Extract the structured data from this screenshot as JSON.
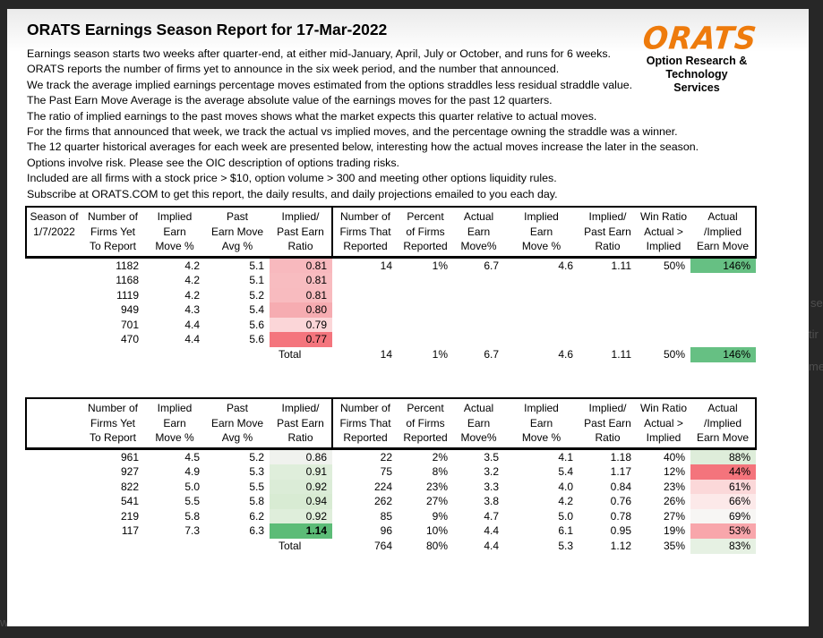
{
  "page": {
    "title": "ORATS Earnings Season Report for 17-Mar-2022",
    "intro_lines": [
      "Earnings season starts two weeks after quarter-end, at either mid-January, April, July or October, and runs for 6 weeks.",
      "ORATS reports the number of firms yet to announce in the six week period, and the number that announced.",
      "We track the average implied earnings percentage moves estimated from the options straddles less residual straddle value.",
      "The Past Earn Move Average is the average absolute value of the earnings moves for the past 12 quarters.",
      "The ratio of implied earnings to the past moves shows what the market expects this quarter relative to actual moves.",
      "For the firms that announced that week, we track the actual vs implied moves, and the percentage owning the straddle was a winner.",
      "The 12 quarter historical averages for each week are presented below, interesting how the actual moves increase the later in the season.",
      "Options involve risk. Please see the OIC description of options trading risks.",
      "Included are all firms with a stock price > $10, option volume > 300 and meeting other options liquidity rules.",
      "Subscribe at ORATS.COM to get this report, the daily results, and daily projections emailed to you each day."
    ]
  },
  "logo": {
    "brand": "ORATS",
    "brand_color": "#EE7B0C",
    "tagline_line1": "Option Research &",
    "tagline_line2": "Technology Services"
  },
  "background": {
    "fragments": [
      {
        "text": "se"
      },
      {
        "text": "tir"
      },
      {
        "text": "me"
      },
      {
        "text": "w"
      }
    ]
  },
  "tables": [
    {
      "name": "current-season",
      "headers": [
        [
          "Season of",
          "1/7/2022",
          ""
        ],
        [
          "Number of",
          "Firms Yet",
          "To Report"
        ],
        [
          "Implied",
          "Earn",
          "Move %"
        ],
        [
          "Past",
          "Earn Move",
          "Avg %"
        ],
        [
          "Implied/",
          "Past Earn",
          "Ratio"
        ],
        [
          "Number of",
          "Firms That",
          "Reported"
        ],
        [
          "Percent",
          "of Firms",
          "Reported"
        ],
        [
          "Actual",
          "Earn",
          "Move%"
        ],
        [
          "Implied",
          "Earn",
          "Move %"
        ],
        [
          "Implied/",
          "Past Earn",
          "Ratio"
        ],
        [
          "Win Ratio",
          "Actual >",
          "Implied"
        ],
        [
          "Actual",
          "/Implied",
          "Earn Move"
        ]
      ],
      "rows": [
        [
          "",
          "1182",
          "4.2",
          "5.1",
          {
            "t": "0.81",
            "bg": "#F8B9BE"
          },
          "14",
          "1%",
          "6.7",
          "4.6",
          "1.11",
          "50%",
          {
            "t": "146%",
            "bg": "#66C083"
          }
        ],
        [
          "",
          "1168",
          "4.2",
          "5.1",
          {
            "t": "0.81",
            "bg": "#F8BCC0"
          },
          "",
          "",
          "",
          "",
          "",
          "",
          ""
        ],
        [
          "",
          "1119",
          "4.2",
          "5.2",
          {
            "t": "0.81",
            "bg": "#F8BBBF"
          },
          "",
          "",
          "",
          "",
          "",
          "",
          ""
        ],
        [
          "",
          "949",
          "4.3",
          "5.4",
          {
            "t": "0.80",
            "bg": "#F6ACB1"
          },
          "",
          "",
          "",
          "",
          "",
          "",
          ""
        ],
        [
          "",
          "701",
          "4.4",
          "5.6",
          {
            "t": "0.79",
            "bg": "#FBD6D8"
          },
          "",
          "",
          "",
          "",
          "",
          "",
          ""
        ],
        [
          "",
          "470",
          "4.4",
          "5.6",
          {
            "t": "0.77",
            "bg": "#F4757D"
          },
          "",
          "",
          "",
          "",
          "",
          "",
          ""
        ],
        [
          "",
          "",
          "",
          "",
          {
            "t": "Total",
            "align": "left"
          },
          "14",
          "1%",
          "6.7",
          "4.6",
          "1.11",
          "50%",
          {
            "t": "146%",
            "bg": "#66C083"
          }
        ]
      ]
    },
    {
      "name": "historical-averages",
      "headers": [
        [
          "",
          "",
          ""
        ],
        [
          "Number of",
          "Firms Yet",
          "To Report"
        ],
        [
          "Implied",
          "Earn",
          "Move %"
        ],
        [
          "Past",
          "Earn Move",
          "Avg %"
        ],
        [
          "Implied/",
          "Past Earn",
          "Ratio"
        ],
        [
          "Number of",
          "Firms That",
          "Reported"
        ],
        [
          "Percent",
          "of Firms",
          "Reported"
        ],
        [
          "Actual",
          "Earn",
          "Move%"
        ],
        [
          "Implied",
          "Earn",
          "Move %"
        ],
        [
          "Implied/",
          "Past Earn",
          "Ratio"
        ],
        [
          "Win Ratio",
          "Actual >",
          "Implied"
        ],
        [
          "Actual",
          "/Implied",
          "Earn Move"
        ]
      ],
      "rows": [
        [
          "",
          "961",
          "4.5",
          "5.2",
          {
            "t": "0.86",
            "bg": "#F0F2EE"
          },
          "22",
          "2%",
          "3.5",
          "4.1",
          "1.18",
          "40%",
          {
            "t": "88%",
            "bg": "#DEEDDA"
          }
        ],
        [
          "",
          "927",
          "4.9",
          "5.3",
          {
            "t": "0.91",
            "bg": "#DFEEDB"
          },
          "75",
          "8%",
          "3.2",
          "5.4",
          "1.17",
          "12%",
          {
            "t": "44%",
            "bg": "#F4747C"
          }
        ],
        [
          "",
          "822",
          "5.0",
          "5.5",
          {
            "t": "0.92",
            "bg": "#DBECD7"
          },
          "224",
          "23%",
          "3.3",
          "4.0",
          "0.84",
          "23%",
          {
            "t": "61%",
            "bg": "#FBD8D9"
          }
        ],
        [
          "",
          "541",
          "5.5",
          "5.8",
          {
            "t": "0.94",
            "bg": "#D8EBD3"
          },
          "262",
          "27%",
          "3.8",
          "4.2",
          "0.76",
          "26%",
          {
            "t": "66%",
            "bg": "#FCE9E9"
          }
        ],
        [
          "",
          "219",
          "5.8",
          "6.2",
          {
            "t": "0.92",
            "bg": "#DFEEDB"
          },
          "85",
          "9%",
          "4.7",
          "5.0",
          "0.78",
          "27%",
          {
            "t": "69%",
            "bg": "#F7F6F4"
          }
        ],
        [
          "",
          "117",
          "7.3",
          "6.3",
          {
            "t": "1.14",
            "bg": "#5CBC77",
            "bold": true
          },
          "96",
          "10%",
          "4.4",
          "6.1",
          "0.95",
          "19%",
          {
            "t": "53%",
            "bg": "#F8A6AB"
          }
        ],
        [
          "",
          "",
          "",
          "",
          {
            "t": "Total",
            "align": "left"
          },
          "764",
          "80%",
          "4.4",
          "5.3",
          "1.12",
          "35%",
          {
            "t": "83%",
            "bg": "#E6F1E3"
          }
        ]
      ]
    }
  ]
}
